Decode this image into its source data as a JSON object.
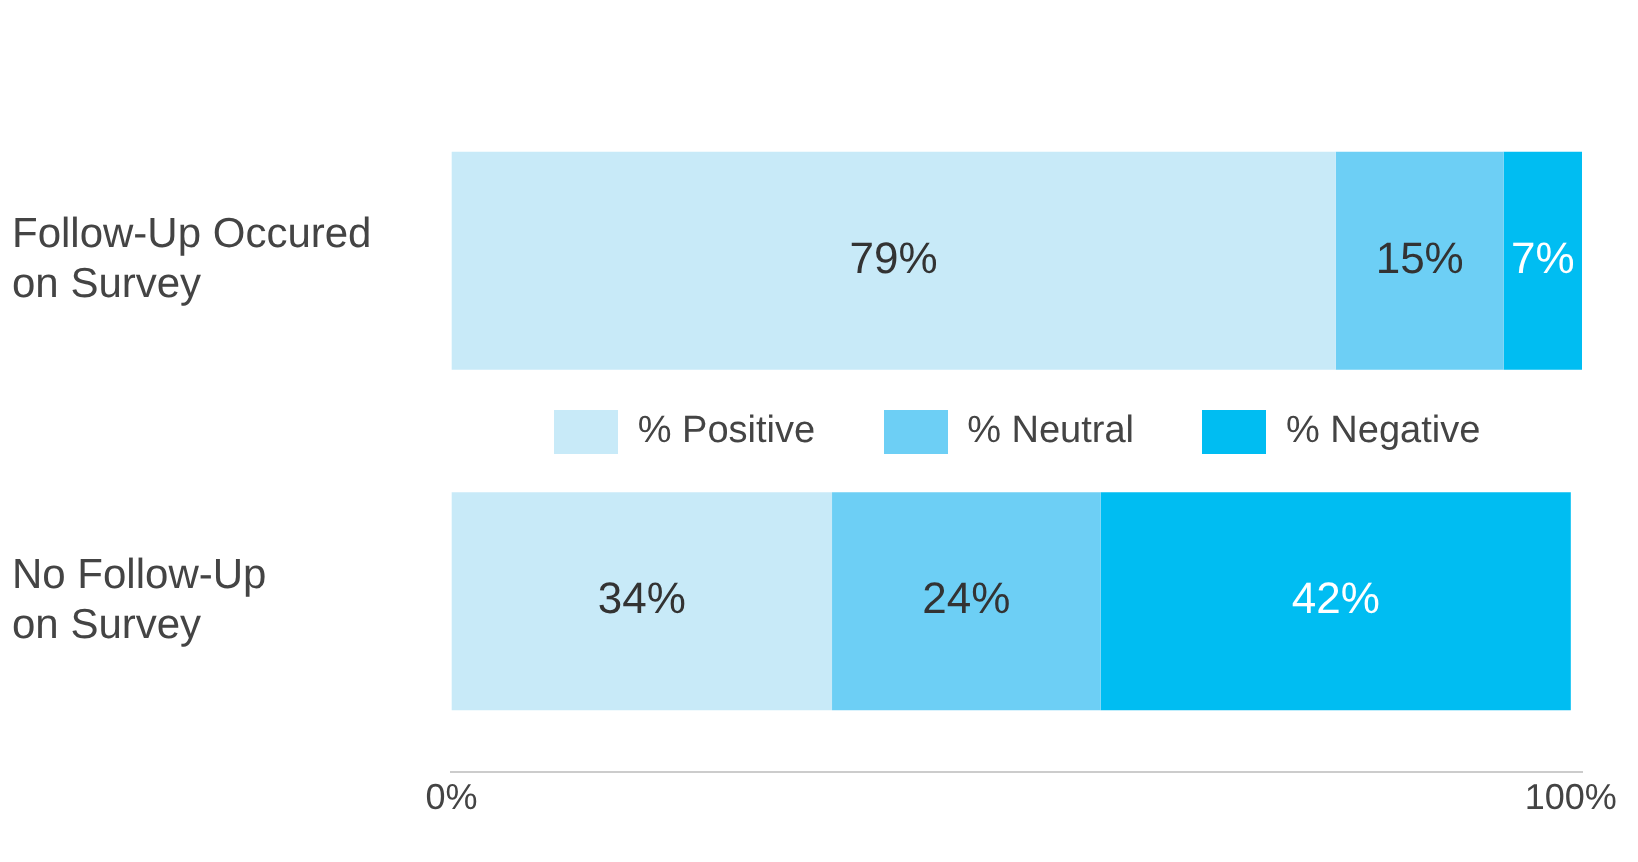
{
  "chart_data": {
    "type": "bar",
    "orientation": "horizontal",
    "stacked": true,
    "categories": [
      "Follow-Up Occured\non Survey",
      "No Follow-Up\non Survey"
    ],
    "series": [
      {
        "name": "% Positive",
        "color": "#c8eaf8",
        "values": [
          79,
          34
        ],
        "value_labels": [
          "79%",
          "34%"
        ]
      },
      {
        "name": "% Neutral",
        "color": "#6dcff5",
        "values": [
          15,
          24
        ],
        "value_labels": [
          "15%",
          "24%"
        ]
      },
      {
        "name": "% Negative",
        "color": "#00bdf2",
        "values": [
          7,
          42
        ],
        "value_labels": [
          "7%",
          "42%"
        ]
      }
    ],
    "xlim": [
      0,
      101
    ],
    "xticks": [
      {
        "value": 0,
        "label": "0%"
      },
      {
        "value": 100,
        "label": "100%"
      }
    ],
    "grid": false,
    "legend": "center"
  }
}
